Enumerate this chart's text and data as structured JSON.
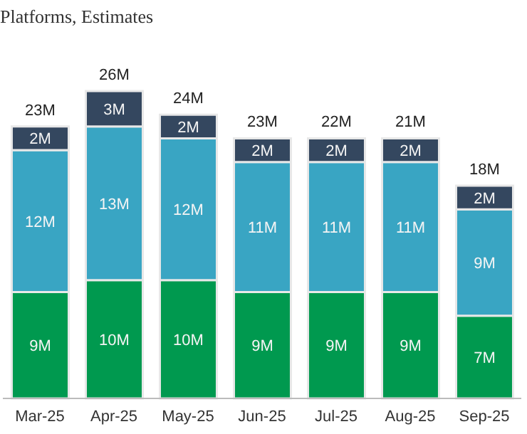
{
  "chart_data": {
    "type": "bar",
    "title": "Platforms, Estimates",
    "stacked": true,
    "categories": [
      "Mar-25",
      "Apr-25",
      "May-25",
      "Jun-25",
      "Jul-25",
      "Aug-25",
      "Sep-25"
    ],
    "series": [
      {
        "color": "#00994f",
        "values": [
          9,
          10,
          10,
          9,
          9,
          9,
          7
        ],
        "value_labels": [
          "9M",
          "10M",
          "10M",
          "9M",
          "9M",
          "9M",
          "7M"
        ]
      },
      {
        "color": "#39a5c3",
        "values": [
          12,
          13,
          12,
          11,
          11,
          11,
          9
        ],
        "value_labels": [
          "12M",
          "13M",
          "12M",
          "11M",
          "11M",
          "11M",
          "9M"
        ]
      },
      {
        "color": "#34475f",
        "values": [
          2,
          3,
          2,
          2,
          2,
          2,
          2
        ],
        "value_labels": [
          "2M",
          "3M",
          "2M",
          "2M",
          "2M",
          "2M",
          "2M"
        ]
      }
    ],
    "totals": [
      "23M",
      "26M",
      "24M",
      "23M",
      "22M",
      "21M",
      "18M"
    ],
    "grid": false,
    "legend": false
  }
}
